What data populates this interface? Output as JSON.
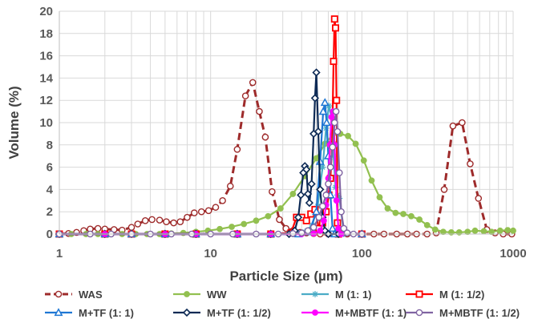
{
  "chart_data": {
    "type": "line",
    "xscale": "log",
    "xlim": [
      1,
      1000
    ],
    "ylim": [
      0,
      20
    ],
    "xticks": [
      1,
      10,
      100,
      1000
    ],
    "xtick_labels": [
      "1",
      "10",
      "100",
      "1000"
    ],
    "yticks": [
      0,
      2,
      4,
      6,
      8,
      10,
      12,
      14,
      16,
      18,
      20
    ],
    "xlabel": "Particle Size (µm)",
    "ylabel": "Volume (%)",
    "title": "",
    "grid": true,
    "legend_position": "bottom",
    "series": [
      {
        "name": "WAS",
        "color": "#9e2b2b",
        "marker": "circle-open",
        "line": "dashed",
        "points": [
          [
            1.0,
            0
          ],
          [
            1.15,
            0.05
          ],
          [
            1.3,
            0.15
          ],
          [
            1.45,
            0.3
          ],
          [
            1.6,
            0.45
          ],
          [
            1.8,
            0.5
          ],
          [
            2.0,
            0.45
          ],
          [
            2.3,
            0.4
          ],
          [
            2.6,
            0.35
          ],
          [
            3.0,
            0.6
          ],
          [
            3.3,
            0.9
          ],
          [
            3.7,
            1.2
          ],
          [
            4.1,
            1.3
          ],
          [
            4.6,
            1.25
          ],
          [
            5.1,
            1.1
          ],
          [
            5.7,
            1.0
          ],
          [
            6.3,
            1.1
          ],
          [
            7.0,
            1.5
          ],
          [
            7.8,
            1.9
          ],
          [
            8.7,
            2.0
          ],
          [
            9.7,
            2.1
          ],
          [
            10.8,
            2.4
          ],
          [
            12.0,
            3.0
          ],
          [
            13.5,
            4.3
          ],
          [
            15.0,
            7.6
          ],
          [
            17.0,
            12.4
          ],
          [
            19.0,
            13.6
          ],
          [
            21.0,
            11.0
          ],
          [
            23.0,
            8.7
          ],
          [
            25.5,
            3.8
          ],
          [
            28.5,
            1.3
          ],
          [
            31.5,
            0.5
          ],
          [
            35,
            0.3
          ],
          [
            39,
            0.15
          ],
          [
            43,
            0.1
          ],
          [
            48,
            0.05
          ],
          [
            53,
            0
          ],
          [
            60,
            0
          ],
          [
            70,
            0
          ],
          [
            80,
            0
          ],
          [
            100,
            0
          ],
          [
            120,
            0
          ],
          [
            140,
            0
          ],
          [
            170,
            0
          ],
          [
            200,
            0
          ],
          [
            230,
            0
          ],
          [
            270,
            0
          ],
          [
            310,
            0.1
          ],
          [
            350,
            4.0
          ],
          [
            400,
            9.7
          ],
          [
            460,
            10.0
          ],
          [
            520,
            6.3
          ],
          [
            590,
            3.2
          ],
          [
            670,
            0.4
          ],
          [
            760,
            0.1
          ],
          [
            860,
            0
          ],
          [
            980,
            0
          ]
        ]
      },
      {
        "name": "WW",
        "color": "#92c050",
        "marker": "circle-filled",
        "line": "solid",
        "points": [
          [
            1.0,
            0
          ],
          [
            1.2,
            0
          ],
          [
            1.5,
            0
          ],
          [
            1.8,
            0
          ],
          [
            2.2,
            0
          ],
          [
            2.6,
            0
          ],
          [
            3.2,
            0
          ],
          [
            3.8,
            0
          ],
          [
            4.6,
            0
          ],
          [
            5.5,
            0.05
          ],
          [
            6.6,
            0.1
          ],
          [
            8.0,
            0.2
          ],
          [
            9.6,
            0.3
          ],
          [
            11.5,
            0.45
          ],
          [
            13.8,
            0.65
          ],
          [
            16.6,
            0.9
          ],
          [
            20,
            1.2
          ],
          [
            24,
            1.6
          ],
          [
            29,
            2.3
          ],
          [
            35,
            3.6
          ],
          [
            42,
            5.2
          ],
          [
            50,
            6.8
          ],
          [
            57,
            8.1
          ],
          [
            64,
            8.9
          ],
          [
            72,
            9.0
          ],
          [
            81,
            8.8
          ],
          [
            91,
            8.1
          ],
          [
            103,
            6.6
          ],
          [
            116,
            4.8
          ],
          [
            131,
            3.3
          ],
          [
            148,
            2.3
          ],
          [
            167,
            1.9
          ],
          [
            188,
            1.8
          ],
          [
            212,
            1.6
          ],
          [
            240,
            1.3
          ],
          [
            270,
            0.8
          ],
          [
            305,
            0.4
          ],
          [
            345,
            0.2
          ],
          [
            390,
            0.15
          ],
          [
            440,
            0.15
          ],
          [
            500,
            0.2
          ],
          [
            560,
            0.3
          ],
          [
            640,
            0.25
          ],
          [
            720,
            0.2
          ],
          [
            820,
            0.3
          ],
          [
            920,
            0.35
          ],
          [
            1000,
            0.3
          ]
        ]
      },
      {
        "name": "M (1: 1)",
        "color": "#4bacc6",
        "marker": "asterisk",
        "line": "solid",
        "points": [
          [
            1.0,
            0
          ],
          [
            2.0,
            0
          ],
          [
            3.0,
            0
          ],
          [
            5.0,
            0
          ],
          [
            8.0,
            0
          ],
          [
            15,
            0
          ],
          [
            25,
            0
          ],
          [
            35,
            0
          ],
          [
            42,
            0.2
          ],
          [
            47,
            0.8
          ],
          [
            51,
            2.5
          ],
          [
            55,
            6.0
          ],
          [
            58,
            9.5
          ],
          [
            60.5,
            11.5
          ],
          [
            63,
            10.5
          ],
          [
            65,
            7.0
          ],
          [
            67,
            4.2
          ],
          [
            69,
            3.5
          ],
          [
            71,
            3.2
          ],
          [
            73,
            2.0
          ],
          [
            76,
            0
          ],
          [
            100,
            0
          ]
        ]
      },
      {
        "name": "M (1: 1/2)",
        "color": "#ff0000",
        "marker": "square-open",
        "line": "solid",
        "points": [
          [
            1.0,
            0
          ],
          [
            2.0,
            0
          ],
          [
            3.0,
            0
          ],
          [
            5.0,
            0
          ],
          [
            8.0,
            0
          ],
          [
            15,
            0
          ],
          [
            25,
            0
          ],
          [
            34,
            0.1
          ],
          [
            37,
            1.5
          ],
          [
            40,
            1.5
          ],
          [
            43,
            1.2
          ],
          [
            46,
            1.8
          ],
          [
            49,
            2.2
          ],
          [
            52,
            0.5
          ],
          [
            55,
            1.0
          ],
          [
            58,
            2.0
          ],
          [
            60.5,
            3.5
          ],
          [
            62,
            5.0
          ],
          [
            63.5,
            8.0
          ],
          [
            65,
            15.5
          ],
          [
            66,
            19.3
          ],
          [
            67,
            18.5
          ],
          [
            68,
            12.0
          ],
          [
            69,
            1.0
          ],
          [
            70,
            0
          ],
          [
            100,
            0
          ]
        ]
      },
      {
        "name": "M+TF (1: 1)",
        "color": "#1f77d4",
        "marker": "triangle-open",
        "line": "solid",
        "points": [
          [
            1.0,
            0
          ],
          [
            2.0,
            0
          ],
          [
            3.0,
            0
          ],
          [
            5.0,
            0
          ],
          [
            8.0,
            0
          ],
          [
            15,
            0
          ],
          [
            25,
            0
          ],
          [
            38,
            0
          ],
          [
            45,
            0.2
          ],
          [
            50,
            2.0
          ],
          [
            53,
            6.5
          ],
          [
            55.5,
            11.0
          ],
          [
            57,
            11.8
          ],
          [
            58.5,
            10.0
          ],
          [
            60,
            7.0
          ],
          [
            62,
            3.5
          ],
          [
            64,
            0.5
          ],
          [
            66,
            0
          ],
          [
            100,
            0
          ]
        ]
      },
      {
        "name": "M+TF (1: 1/2)",
        "color": "#0d2a55",
        "marker": "diamond-open",
        "line": "solid",
        "points": [
          [
            1.0,
            0
          ],
          [
            2.0,
            0
          ],
          [
            3.0,
            0
          ],
          [
            5.0,
            0
          ],
          [
            8.0,
            0
          ],
          [
            15,
            0
          ],
          [
            25,
            0
          ],
          [
            33,
            0
          ],
          [
            36,
            0.3
          ],
          [
            38,
            1.5
          ],
          [
            39.5,
            3.5
          ],
          [
            41,
            5.5
          ],
          [
            42,
            6.1
          ],
          [
            43,
            5.8
          ],
          [
            44,
            3.6
          ],
          [
            45,
            2.8
          ],
          [
            46.5,
            4.5
          ],
          [
            48,
            9.0
          ],
          [
            49,
            12.2
          ],
          [
            50,
            14.5
          ],
          [
            51.5,
            9.2
          ],
          [
            53,
            4.0
          ],
          [
            55,
            1.5
          ],
          [
            57,
            0.3
          ],
          [
            60,
            0
          ],
          [
            70,
            0
          ],
          [
            100,
            0
          ]
        ]
      },
      {
        "name": "M+MBTF (1: 1)",
        "color": "#ff00ff",
        "marker": "circle-filled",
        "line": "solid",
        "points": [
          [
            1.0,
            0
          ],
          [
            2.0,
            0
          ],
          [
            3.0,
            0
          ],
          [
            5.0,
            0
          ],
          [
            8.0,
            0
          ],
          [
            15,
            0
          ],
          [
            25,
            0
          ],
          [
            40,
            0
          ],
          [
            48,
            0.05
          ],
          [
            53,
            0.3
          ],
          [
            56,
            1.2
          ],
          [
            58,
            2.6
          ],
          [
            60,
            5.0
          ],
          [
            61.5,
            8.0
          ],
          [
            63,
            10.5
          ],
          [
            64.5,
            11.0
          ],
          [
            66,
            8.0
          ],
          [
            68,
            3.0
          ],
          [
            70,
            0.5
          ],
          [
            73,
            0
          ],
          [
            100,
            0
          ]
        ]
      },
      {
        "name": "M+MBTF (1: 1/2)",
        "color": "#8064a2",
        "marker": "circle-open",
        "line": "solid",
        "points": [
          [
            1.0,
            0
          ],
          [
            1.6,
            0
          ],
          [
            2.2,
            0
          ],
          [
            3.0,
            0
          ],
          [
            4.0,
            0
          ],
          [
            5.5,
            0
          ],
          [
            7.5,
            0
          ],
          [
            10,
            0
          ],
          [
            14,
            0
          ],
          [
            20,
            0
          ],
          [
            28,
            0
          ],
          [
            35,
            0.05
          ],
          [
            40,
            0.1
          ],
          [
            44,
            0.3
          ],
          [
            48,
            0.6
          ],
          [
            52,
            1.5
          ],
          [
            55,
            2.5
          ],
          [
            58,
            3.5
          ],
          [
            60,
            4.5
          ],
          [
            62,
            6.0
          ],
          [
            64,
            7.8
          ],
          [
            66,
            10.0
          ],
          [
            67.5,
            11.0
          ],
          [
            69,
            9.2
          ],
          [
            71,
            5.5
          ],
          [
            73,
            2.0
          ],
          [
            76,
            0.5
          ],
          [
            80,
            0.1
          ],
          [
            88,
            0
          ],
          [
            100,
            0
          ]
        ]
      }
    ]
  }
}
